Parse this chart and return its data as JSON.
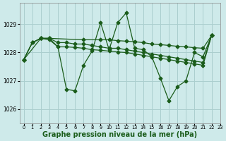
{
  "background_color": "#ceeaea",
  "grid_color": "#aacece",
  "line_color": "#1a5c1a",
  "marker_color": "#1a5c1a",
  "xlabel": "Graphe pression niveau de la mer (hPa)",
  "xlabel_fontsize": 7,
  "ylim": [
    1025.5,
    1029.75
  ],
  "xlim": [
    -0.5,
    23
  ],
  "yticks": [
    1026,
    1027,
    1028,
    1029
  ],
  "xticks": [
    0,
    1,
    2,
    3,
    4,
    5,
    6,
    7,
    8,
    9,
    10,
    11,
    12,
    13,
    14,
    15,
    16,
    17,
    18,
    19,
    20,
    21,
    22,
    23
  ],
  "s1_x": [
    0,
    1,
    2,
    3,
    4,
    5,
    6,
    7,
    8,
    9,
    10,
    11,
    12,
    13,
    14,
    15,
    16,
    17,
    18,
    19,
    20,
    21,
    22
  ],
  "s1_y": [
    1027.75,
    1028.35,
    1028.5,
    1028.5,
    1028.2,
    1026.7,
    1026.65,
    1027.55,
    1028.05,
    1029.05,
    1028.1,
    1029.05,
    1029.4,
    1028.15,
    1028.1,
    1027.85,
    1027.1,
    1026.3,
    1026.8,
    1027.0,
    1028.0,
    1027.85,
    1028.6
  ],
  "s2_x": [
    0,
    1,
    2,
    3,
    4,
    5,
    6,
    7,
    8,
    9,
    10,
    11,
    12,
    13,
    14,
    15,
    16,
    17,
    18,
    19,
    20,
    21,
    22
  ],
  "s2_y": [
    1027.75,
    1028.35,
    1028.5,
    1028.5,
    1028.35,
    1028.35,
    1028.3,
    1028.3,
    1028.25,
    1028.2,
    1028.15,
    1028.15,
    1028.1,
    1028.05,
    1028.0,
    1027.95,
    1027.9,
    1027.85,
    1027.8,
    1027.75,
    1027.7,
    1027.65,
    1028.6
  ],
  "s3_x": [
    0,
    1,
    2,
    3,
    4,
    5,
    6,
    7,
    8,
    9,
    10,
    11,
    12,
    13,
    14,
    15,
    16,
    17,
    18,
    19,
    20,
    21,
    22
  ],
  "s3_y": [
    1027.75,
    1028.35,
    1028.5,
    1028.45,
    1028.2,
    1028.2,
    1028.18,
    1028.15,
    1028.1,
    1028.08,
    1028.05,
    1028.02,
    1028.0,
    1027.95,
    1027.9,
    1027.85,
    1027.8,
    1027.75,
    1027.7,
    1027.65,
    1027.6,
    1027.55,
    1028.6
  ],
  "s4_x": [
    0,
    2,
    3,
    7,
    9,
    10,
    11,
    12,
    13,
    14,
    15,
    16,
    17,
    18,
    19,
    20,
    21,
    22
  ],
  "s4_y": [
    1027.75,
    1028.5,
    1028.5,
    1028.45,
    1028.45,
    1028.45,
    1028.42,
    1028.4,
    1028.38,
    1028.35,
    1028.3,
    1028.28,
    1028.25,
    1028.22,
    1028.2,
    1028.17,
    1028.15,
    1028.6
  ]
}
